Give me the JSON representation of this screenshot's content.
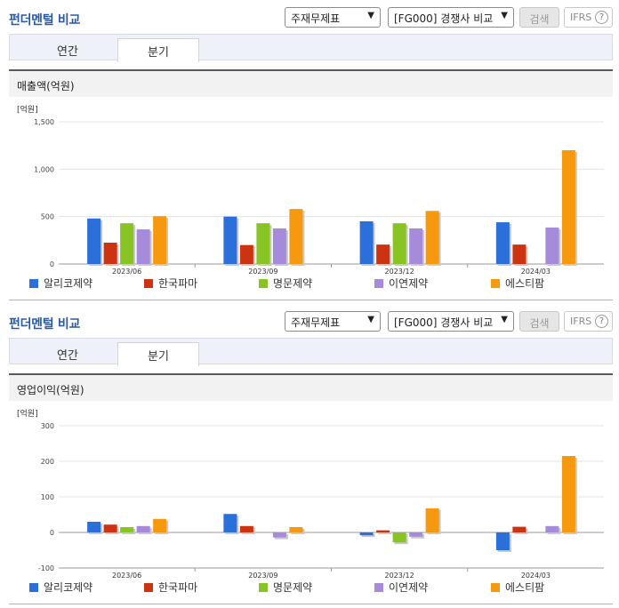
{
  "panels": [
    {
      "title": "펀더멘털 비교",
      "select_statement": "주재무제표",
      "select_compare": "[FG000] 경쟁사 비교",
      "search_label": "검색",
      "ifrs_label": "IFRS",
      "help_glyph": "?",
      "tabs": [
        "연간",
        "분기"
      ],
      "active_tab": "분기",
      "chart_title": "매출액(억원)"
    },
    {
      "title": "펀더멘털 비교",
      "select_statement": "주재무제표",
      "select_compare": "[FG000] 경쟁사 비교",
      "search_label": "검색",
      "ifrs_label": "IFRS",
      "help_glyph": "?",
      "tabs": [
        "연간",
        "분기"
      ],
      "active_tab": "분기",
      "chart_title": "영업이익(억원)"
    }
  ],
  "chart_data": [
    {
      "type": "bar",
      "title": "매출액(억원)",
      "unit_label": "[억원]",
      "categories": [
        "2023/06",
        "2023/09",
        "2023/12",
        "2024/03"
      ],
      "ylim": [
        0,
        1500
      ],
      "yticks": [
        0,
        500,
        1000,
        1500
      ],
      "ytick_labels": [
        "0",
        "500",
        "1,000",
        "1,500"
      ],
      "grid": true,
      "legend_position": "bottom",
      "series": [
        {
          "name": "알리코제약",
          "color": "#2b6fdb",
          "values": [
            480,
            500,
            450,
            440
          ]
        },
        {
          "name": "한국파마",
          "color": "#cc3311",
          "values": [
            225,
            200,
            205,
            205
          ]
        },
        {
          "name": "명문제약",
          "color": "#88c424",
          "values": [
            430,
            430,
            430,
            null
          ]
        },
        {
          "name": "이연제약",
          "color": "#a78bdb",
          "values": [
            365,
            375,
            375,
            385
          ]
        },
        {
          "name": "에스티팜",
          "color": "#f7990f",
          "values": [
            505,
            580,
            560,
            1200
          ]
        }
      ]
    },
    {
      "type": "bar",
      "title": "영업이익(억원)",
      "unit_label": "[억원]",
      "categories": [
        "2023/06",
        "2023/09",
        "2023/12",
        "2024/03"
      ],
      "ylim": [
        -100,
        300
      ],
      "yticks": [
        -100,
        0,
        100,
        200,
        300
      ],
      "ytick_labels": [
        "-100",
        "0",
        "100",
        "200",
        "300"
      ],
      "grid": true,
      "legend_position": "bottom",
      "series": [
        {
          "name": "알리코제약",
          "color": "#2b6fdb",
          "values": [
            30,
            52,
            -8,
            -50
          ]
        },
        {
          "name": "한국파마",
          "color": "#cc3311",
          "values": [
            22,
            18,
            6,
            16
          ]
        },
        {
          "name": "명문제약",
          "color": "#88c424",
          "values": [
            15,
            null,
            -28,
            null
          ]
        },
        {
          "name": "이연제약",
          "color": "#a78bdb",
          "values": [
            18,
            -14,
            -12,
            18
          ]
        },
        {
          "name": "에스티팜",
          "color": "#f7990f",
          "values": [
            38,
            15,
            68,
            215
          ]
        }
      ]
    }
  ]
}
